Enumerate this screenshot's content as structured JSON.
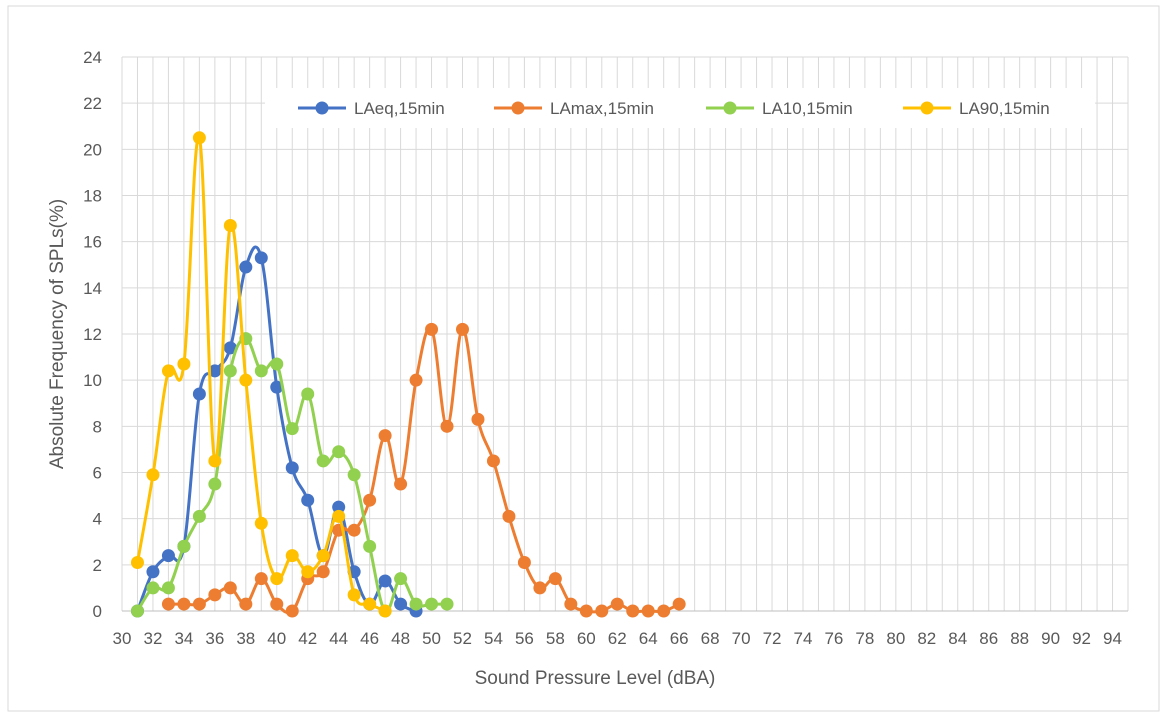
{
  "chart_data": {
    "type": "line",
    "title": "",
    "xlabel": "Sound Pressure Level (dBA)",
    "ylabel": "Absolute Frequency of SPLs(%)",
    "xlim": [
      30,
      95
    ],
    "ylim": [
      0,
      24
    ],
    "x_ticks": [
      "30",
      "32",
      "34",
      "36",
      "38",
      "40",
      "42",
      "44",
      "46",
      "48",
      "50",
      "52",
      "54",
      "56",
      "58",
      "60",
      "62",
      "64",
      "66",
      "68",
      "70",
      "72",
      "74",
      "76",
      "78",
      "80",
      "82",
      "84",
      "86",
      "88",
      "90",
      "92",
      "94"
    ],
    "y_ticks": [
      "0",
      "2",
      "4",
      "6",
      "8",
      "10",
      "12",
      "14",
      "16",
      "18",
      "20",
      "22",
      "24"
    ],
    "grid": true,
    "legend_position": "top",
    "series": [
      {
        "name": "LAeq,15min",
        "color": "#4472C4",
        "x": [
          31,
          32,
          33,
          34,
          35,
          36,
          37,
          38,
          39,
          40,
          41,
          42,
          43,
          44,
          45,
          46,
          47,
          48,
          49
        ],
        "y": [
          0,
          1.7,
          2.4,
          2.8,
          9.4,
          10.4,
          11.4,
          14.9,
          15.3,
          9.7,
          6.2,
          4.8,
          2.4,
          4.5,
          1.7,
          0.3,
          1.3,
          0.3,
          0
        ]
      },
      {
        "name": "LAmax,15min",
        "color": "#ED7D31",
        "x": [
          33,
          34,
          35,
          36,
          37,
          38,
          39,
          40,
          41,
          42,
          43,
          44,
          45,
          46,
          47,
          48,
          49,
          50,
          51,
          52,
          53,
          54,
          55,
          56,
          57,
          58,
          59,
          60,
          61,
          62,
          63,
          64,
          65,
          66
        ],
        "y": [
          0.3,
          0.3,
          0.3,
          0.7,
          1.0,
          0.3,
          1.4,
          0.3,
          0,
          1.4,
          1.7,
          3.5,
          3.5,
          4.8,
          7.6,
          5.5,
          10.0,
          12.2,
          8.0,
          12.2,
          8.3,
          6.5,
          4.1,
          2.1,
          1.0,
          1.4,
          0.3,
          0,
          0,
          0.3,
          0,
          0,
          0,
          0.3
        ]
      },
      {
        "name": "LA10,15min",
        "color": "#92D050",
        "x": [
          31,
          32,
          33,
          34,
          35,
          36,
          37,
          38,
          39,
          40,
          41,
          42,
          43,
          44,
          45,
          46,
          47,
          48,
          49,
          50,
          51
        ],
        "y": [
          0,
          1.0,
          1.0,
          2.8,
          4.1,
          5.5,
          10.4,
          11.8,
          10.4,
          10.7,
          7.9,
          9.4,
          6.5,
          6.9,
          5.9,
          2.8,
          0,
          1.4,
          0.3,
          0.3,
          0.3
        ]
      },
      {
        "name": "LA90,15min",
        "color": "#FFC000",
        "x": [
          31,
          32,
          33,
          34,
          35,
          36,
          37,
          38,
          39,
          40,
          41,
          42,
          43,
          44,
          45,
          46,
          47
        ],
        "y": [
          2.1,
          5.9,
          10.4,
          10.7,
          20.5,
          6.5,
          16.7,
          10.0,
          3.8,
          1.4,
          2.4,
          1.7,
          2.4,
          4.1,
          0.7,
          0.3,
          0
        ]
      }
    ]
  }
}
